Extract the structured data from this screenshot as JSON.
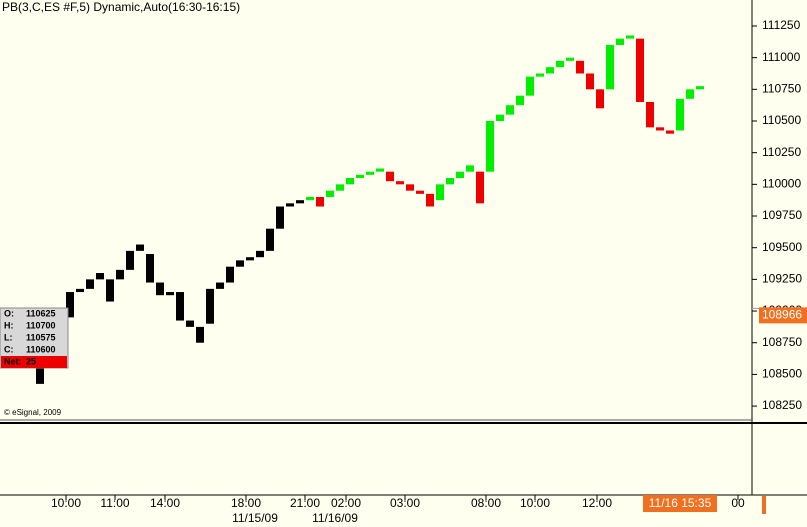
{
  "chart_data": {
    "type": "price_break",
    "title": "PB(3,C,ES #F,5) Dynamic,Auto(16:30-16:15)",
    "low": [
      108425,
      108725,
      108850,
      108950,
      109150,
      109175,
      109250,
      109075,
      109250,
      109325,
      109475,
      109225,
      109125,
      109125,
      108925,
      108875,
      108750,
      108900,
      109175,
      109225,
      109350,
      109400,
      109425,
      109475,
      109650,
      109825,
      109850,
      109875,
      109825,
      109900,
      109950,
      110000,
      110050,
      110075,
      110100,
      110025,
      110000,
      109950,
      109925,
      109825,
      109875,
      110000,
      110050,
      110100,
      109850,
      110100,
      110500,
      110550,
      110625,
      110700,
      110850,
      110875,
      110925,
      110975,
      110875,
      110750,
      110600,
      110750,
      111100,
      111150,
      110650,
      110450,
      110425,
      110400,
      110425,
      110675,
      110750
    ],
    "high": [
      108725,
      108850,
      108950,
      109150,
      109175,
      109250,
      109300,
      109250,
      109325,
      109475,
      109525,
      109450,
      109225,
      109150,
      109150,
      108925,
      108875,
      109175,
      109225,
      109350,
      109400,
      109425,
      109475,
      109650,
      109825,
      109850,
      109875,
      109900,
      109900,
      109950,
      110000,
      110050,
      110075,
      110100,
      110125,
      110100,
      110025,
      110000,
      109950,
      109925,
      110000,
      110050,
      110100,
      110150,
      110100,
      110500,
      110550,
      110625,
      110700,
      110850,
      110875,
      110925,
      110975,
      111000,
      110975,
      110875,
      110750,
      111100,
      111150,
      111175,
      111150,
      110650,
      110450,
      110425,
      110675,
      110750,
      110775
    ],
    "colors": [
      "#000000",
      "#000000",
      "#000000",
      "#000000",
      "#000000",
      "#000000",
      "#000000",
      "#000000",
      "#000000",
      "#000000",
      "#000000",
      "#000000",
      "#000000",
      "#000000",
      "#000000",
      "#000000",
      "#000000",
      "#000000",
      "#000000",
      "#000000",
      "#000000",
      "#000000",
      "#000000",
      "#000000",
      "#000000",
      "#000000",
      "#000000",
      "#00ee00",
      "#ee0000",
      "#00ee00",
      "#00ee00",
      "#00ee00",
      "#00ee00",
      "#00ee00",
      "#00ee00",
      "#ee0000",
      "#ee0000",
      "#ee0000",
      "#ee0000",
      "#ee0000",
      "#00ee00",
      "#00ee00",
      "#00ee00",
      "#00ee00",
      "#ee0000",
      "#00ee00",
      "#00ee00",
      "#00ee00",
      "#00ee00",
      "#00ee00",
      "#00ee00",
      "#00ee00",
      "#00ee00",
      "#00ee00",
      "#ee0000",
      "#ee0000",
      "#ee0000",
      "#00ee00",
      "#00ee00",
      "#00ee00",
      "#ee0000",
      "#ee0000",
      "#ee0000",
      "#ee0000",
      "#00ee00",
      "#00ee00",
      "#00ee00"
    ],
    "ylim": [
      108140,
      111455
    ],
    "yticks": [
      108250,
      108500,
      108750,
      109000,
      109250,
      109500,
      109750,
      110000,
      110250,
      110500,
      110750,
      111000,
      111250
    ],
    "xticks": [
      {
        "value": 2.6,
        "label": "10:00"
      },
      {
        "value": 7.5,
        "label": "11:00"
      },
      {
        "value": 12.5,
        "label": "14:00"
      },
      {
        "value": 20.6,
        "label": "18:00"
      },
      {
        "value": 26.5,
        "label": "21:00"
      },
      {
        "value": 30.6,
        "label": "02:00"
      },
      {
        "value": 36.5,
        "label": "03:00"
      },
      {
        "value": 44.6,
        "label": "08:00"
      },
      {
        "value": 49.5,
        "label": "10:00"
      },
      {
        "value": 55.7,
        "label": "12:00"
      },
      {
        "value": 69.8,
        "label": "00"
      }
    ],
    "date_ticks": [
      {
        "value": 21.5,
        "label": "11/15/09"
      },
      {
        "value": 29.5,
        "label": "11/16/09"
      }
    ],
    "last_price": 108966,
    "current_time": "11/16 15:35",
    "copyright": "© eSignal, 2009",
    "info": {
      "labels": [
        "O:",
        "H:",
        "L:",
        "C:",
        "Net:"
      ],
      "values": [
        110625,
        110700,
        110575,
        110600,
        25
      ]
    }
  }
}
